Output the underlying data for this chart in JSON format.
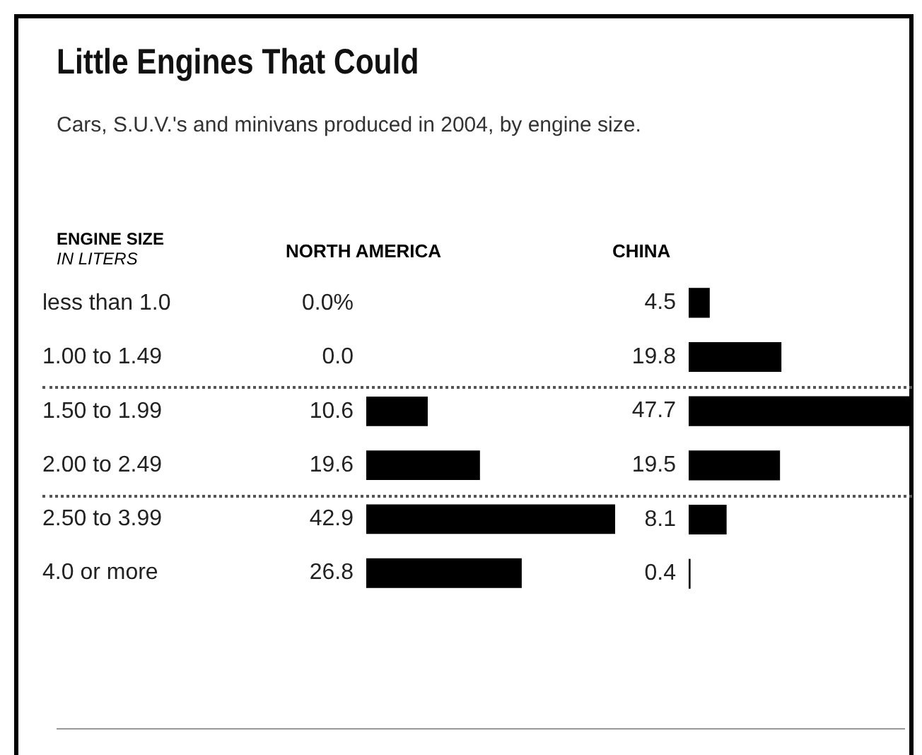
{
  "chart_data": [
    {
      "type": "bar",
      "orientation": "horizontal",
      "title": "Little Engines That Could",
      "subtitle": "Cars, S.U.V.'s and minivans produced in 2004, by engine size.",
      "ylabel": "ENGINE SIZE",
      "annotations": [
        "IN LITERS"
      ],
      "xlabel": "NORTH AMERICA",
      "categories": [
        "less than 1.0",
        "1.00 to 1.49",
        "1.50 to 1.99",
        "2.00 to 2.49",
        "2.50 to 3.99",
        "4.0 or more"
      ],
      "values": [
        0.0,
        0.0,
        10.6,
        19.6,
        42.9,
        26.8
      ],
      "value_labels": [
        "0.0%",
        "0.0",
        "10.6",
        "19.6",
        "42.9",
        "26.8"
      ],
      "color": "#000000"
    },
    {
      "type": "bar",
      "orientation": "horizontal",
      "xlabel": "CHINA",
      "categories": [
        null,
        null,
        null,
        null,
        null,
        null
      ],
      "values": [
        4.5,
        19.8,
        47.7,
        19.5,
        8.1,
        0.4
      ],
      "data_labels": true,
      "color": "#000000",
      "tick_labels": false
    }
  ]
}
